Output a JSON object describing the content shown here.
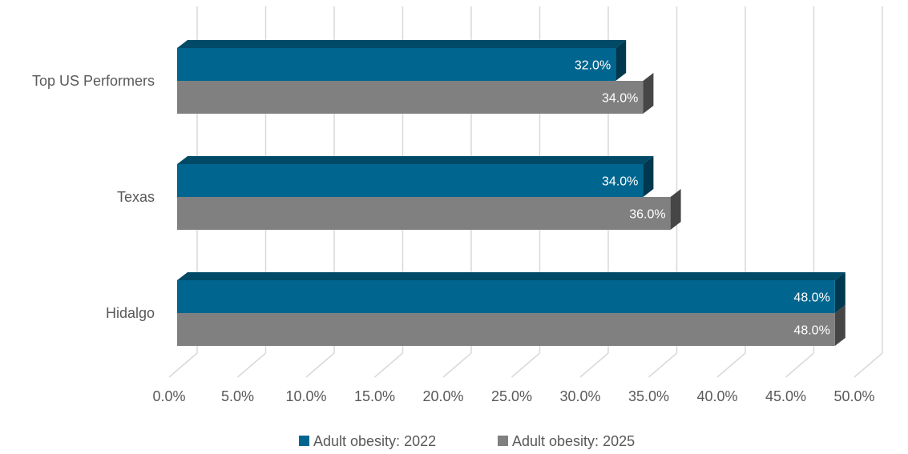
{
  "chart_data": {
    "type": "bar",
    "orientation": "horizontal",
    "three_d": true,
    "categories": [
      "Top US Performers",
      "Texas",
      "Hidalgo"
    ],
    "series": [
      {
        "name": "Adult obesity: 2022",
        "values": [
          32.0,
          34.0,
          48.0
        ],
        "labels": [
          "32.0%",
          "34.0%",
          "48.0%"
        ],
        "color": "#00668f"
      },
      {
        "name": "Adult obesity: 2025",
        "values": [
          34.0,
          36.0,
          48.0
        ],
        "labels": [
          "34.0%",
          "36.0%",
          "48.0%"
        ],
        "color": "#808080"
      }
    ],
    "xlim": [
      0,
      50
    ],
    "x_ticks": [
      0,
      5,
      10,
      15,
      20,
      25,
      30,
      35,
      40,
      45,
      50
    ],
    "x_tick_labels": [
      "0.0%",
      "5.0%",
      "10.0%",
      "15.0%",
      "20.0%",
      "25.0%",
      "30.0%",
      "35.0%",
      "40.0%",
      "45.0%",
      "50.0%"
    ],
    "grid": true,
    "legend_position": "bottom",
    "title": "",
    "xlabel": "",
    "ylabel": ""
  }
}
